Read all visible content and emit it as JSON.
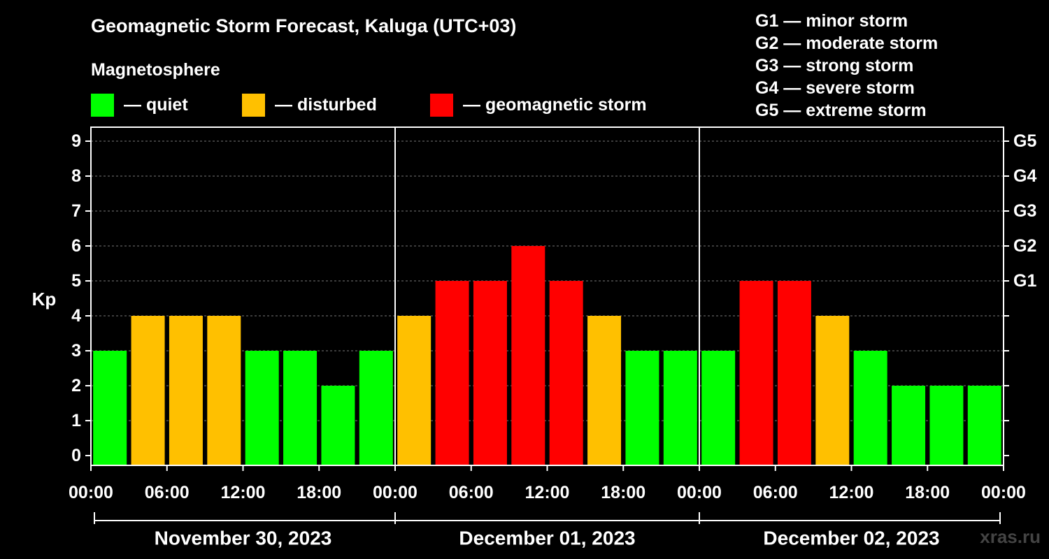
{
  "title": "Geomagnetic Storm Forecast, Kaluga (UTC+03)",
  "magnetosphere_label": "Magnetosphere",
  "legend": [
    {
      "label": "— quiet",
      "color": "#00ff00"
    },
    {
      "label": "— disturbed",
      "color": "#ffc000"
    },
    {
      "label": "— geomagnetic storm",
      "color": "#ff0000"
    }
  ],
  "storm_scale": [
    "G1 — minor storm",
    "G2 — moderate storm",
    "G3 — strong storm",
    "G4 — severe storm",
    "G5 — extreme storm"
  ],
  "watermark": "xras.ru",
  "colors": {
    "quiet": "#00ff00",
    "disturbed": "#ffc000",
    "storm": "#ff0000",
    "background": "#000000",
    "axis": "#ffffff"
  },
  "chart_data": {
    "type": "bar",
    "ylabel": "Kp",
    "ylim": [
      0,
      9
    ],
    "y_ticks": [
      0,
      1,
      2,
      3,
      4,
      5,
      6,
      7,
      8,
      9
    ],
    "right_ticks": [
      {
        "value": 5,
        "label": "G1"
      },
      {
        "value": 6,
        "label": "G2"
      },
      {
        "value": 7,
        "label": "G3"
      },
      {
        "value": 8,
        "label": "G4"
      },
      {
        "value": 9,
        "label": "G5"
      }
    ],
    "grid": true,
    "x_tick_labels": [
      "00:00",
      "06:00",
      "12:00",
      "18:00",
      "00:00",
      "06:00",
      "12:00",
      "18:00",
      "00:00",
      "06:00",
      "12:00",
      "18:00",
      "00:00"
    ],
    "days": [
      "November 30, 2023",
      "December 01, 2023",
      "December 02, 2023"
    ],
    "hours_per_bar": 3,
    "values": [
      3,
      4,
      4,
      4,
      3,
      3,
      2,
      3,
      4,
      5,
      5,
      6,
      5,
      4,
      3,
      3,
      3,
      5,
      5,
      4,
      3,
      2,
      2,
      2
    ]
  }
}
